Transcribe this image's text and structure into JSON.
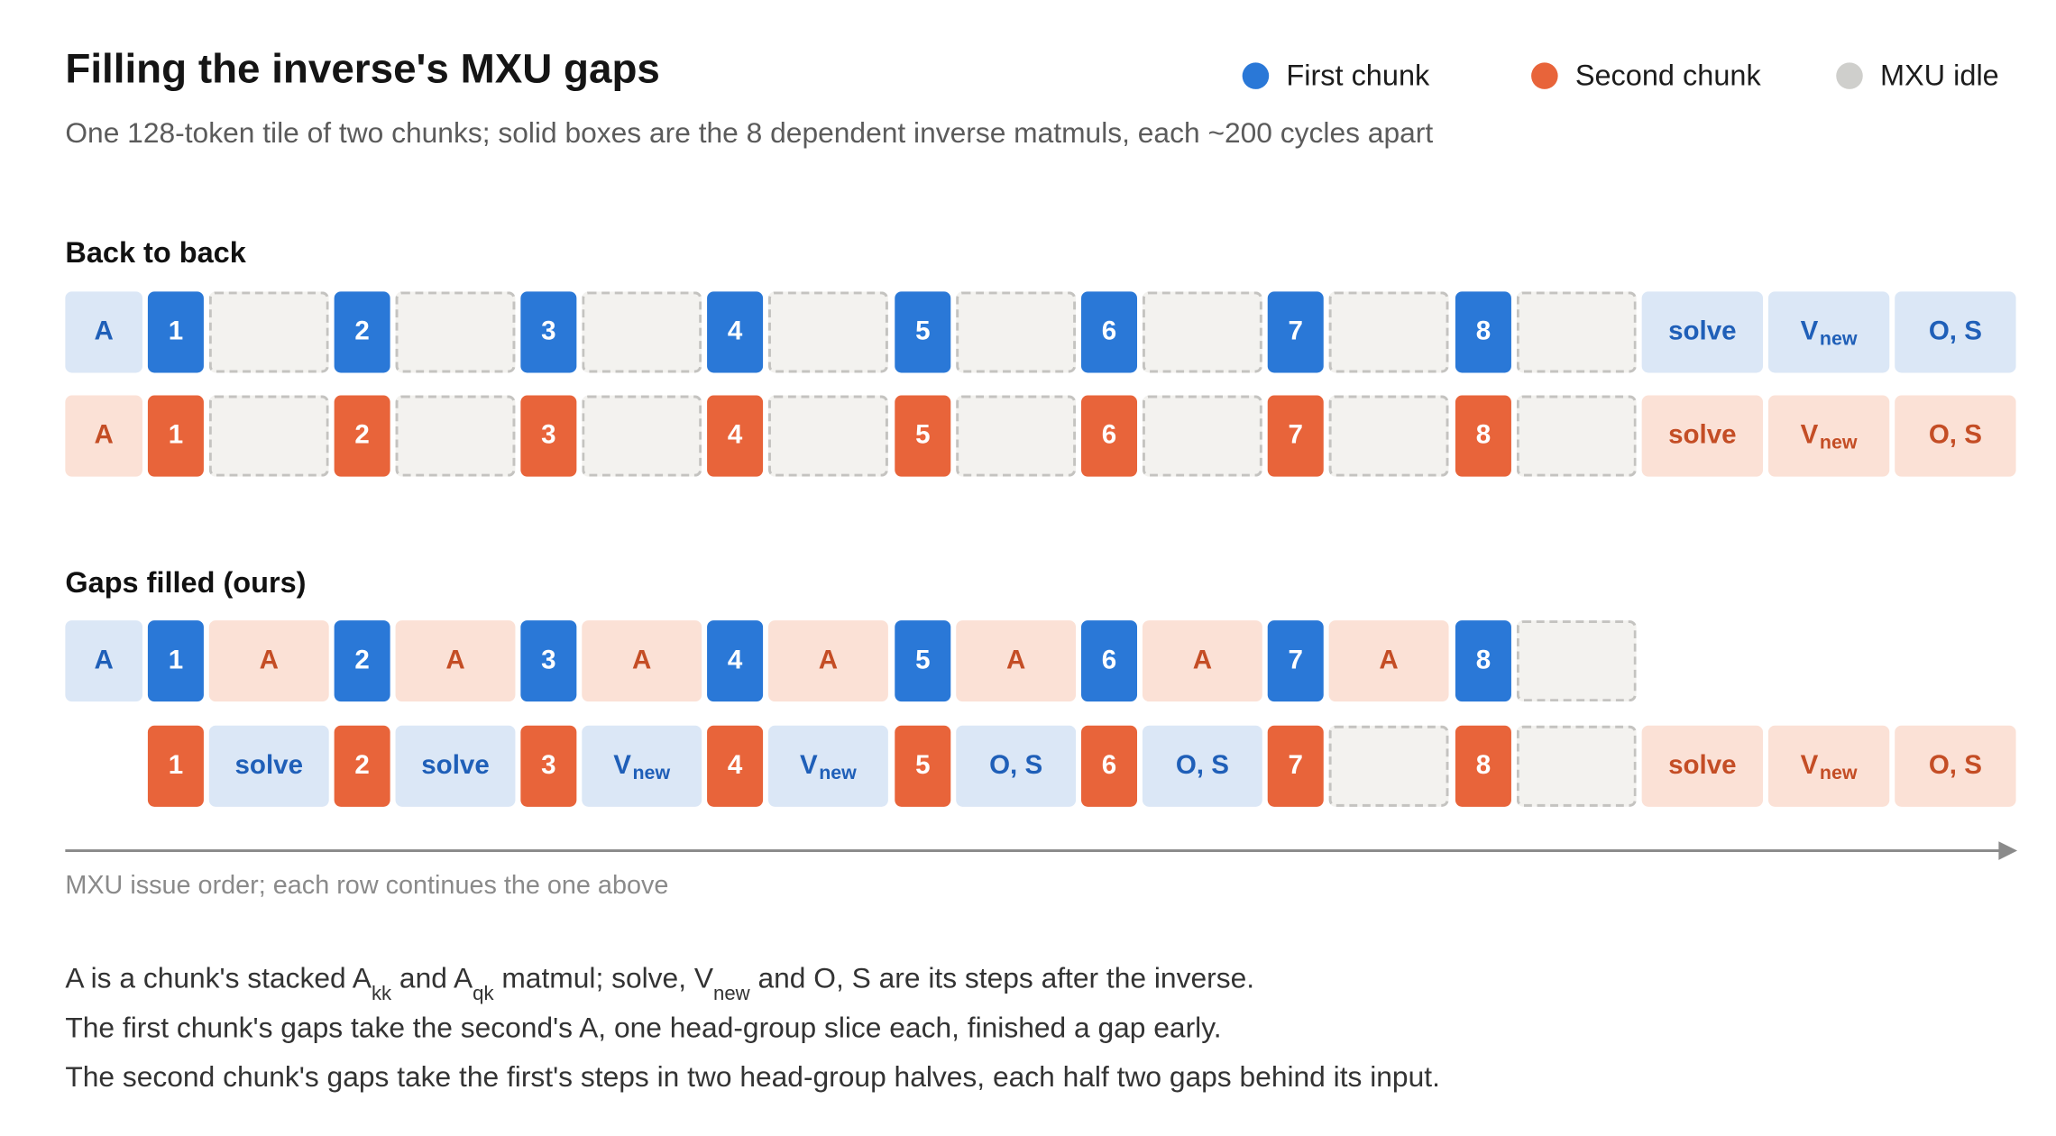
{
  "header": {
    "title": "Filling the inverse's MXU gaps",
    "subtitle": "One 128-token tile of two chunks; solid boxes are the 8 dependent inverse matmuls, each ~200 cycles apart"
  },
  "legend": [
    {
      "label": "First chunk",
      "color": "#2a78d7"
    },
    {
      "label": "Second chunk",
      "color": "#e8643a"
    },
    {
      "label": "MXU idle",
      "color": "#cfcfcc"
    }
  ],
  "sections": {
    "back_to_back": "Back to back",
    "gaps_filled": "Gaps filled (ours)"
  },
  "rows": [
    {
      "name": "back-to-back-first-chunk",
      "cells": [
        [
          "b-lt",
          "A"
        ],
        [
          "b-num",
          "1"
        ],
        [
          "idle",
          ""
        ],
        [
          "b-num",
          "2"
        ],
        [
          "idle",
          ""
        ],
        [
          "b-num",
          "3"
        ],
        [
          "idle",
          ""
        ],
        [
          "b-num",
          "4"
        ],
        [
          "idle",
          ""
        ],
        [
          "b-num",
          "5"
        ],
        [
          "idle",
          ""
        ],
        [
          "b-num",
          "6"
        ],
        [
          "idle",
          ""
        ],
        [
          "b-num",
          "7"
        ],
        [
          "idle",
          ""
        ],
        [
          "b-num",
          "8"
        ],
        [
          "idle",
          ""
        ],
        [
          "b-lt",
          "solve"
        ],
        [
          "b-lt",
          "V|new"
        ],
        [
          "b-lt",
          "O, S"
        ]
      ]
    },
    {
      "name": "back-to-back-second-chunk",
      "cells": [
        [
          "o-lt",
          "A"
        ],
        [
          "o-num",
          "1"
        ],
        [
          "idle",
          ""
        ],
        [
          "o-num",
          "2"
        ],
        [
          "idle",
          ""
        ],
        [
          "o-num",
          "3"
        ],
        [
          "idle",
          ""
        ],
        [
          "o-num",
          "4"
        ],
        [
          "idle",
          ""
        ],
        [
          "o-num",
          "5"
        ],
        [
          "idle",
          ""
        ],
        [
          "o-num",
          "6"
        ],
        [
          "idle",
          ""
        ],
        [
          "o-num",
          "7"
        ],
        [
          "idle",
          ""
        ],
        [
          "o-num",
          "8"
        ],
        [
          "idle",
          ""
        ],
        [
          "o-lt",
          "solve"
        ],
        [
          "o-lt",
          "V|new"
        ],
        [
          "o-lt",
          "O, S"
        ]
      ]
    },
    {
      "name": "gaps-filled-first-chunk",
      "cells": [
        [
          "b-lt",
          "A"
        ],
        [
          "b-num",
          "1"
        ],
        [
          "o-lt",
          "A"
        ],
        [
          "b-num",
          "2"
        ],
        [
          "o-lt",
          "A"
        ],
        [
          "b-num",
          "3"
        ],
        [
          "o-lt",
          "A"
        ],
        [
          "b-num",
          "4"
        ],
        [
          "o-lt",
          "A"
        ],
        [
          "b-num",
          "5"
        ],
        [
          "o-lt",
          "A"
        ],
        [
          "b-num",
          "6"
        ],
        [
          "o-lt",
          "A"
        ],
        [
          "b-num",
          "7"
        ],
        [
          "o-lt",
          "A"
        ],
        [
          "b-num",
          "8"
        ],
        [
          "idle",
          ""
        ]
      ]
    },
    {
      "name": "gaps-filled-second-chunk",
      "cells": [
        [
          "none",
          ""
        ],
        [
          "o-num",
          "1"
        ],
        [
          "b-lt",
          "solve"
        ],
        [
          "o-num",
          "2"
        ],
        [
          "b-lt",
          "solve"
        ],
        [
          "o-num",
          "3"
        ],
        [
          "b-lt",
          "V|new"
        ],
        [
          "o-num",
          "4"
        ],
        [
          "b-lt",
          "V|new"
        ],
        [
          "o-num",
          "5"
        ],
        [
          "b-lt",
          "O, S"
        ],
        [
          "o-num",
          "6"
        ],
        [
          "b-lt",
          "O, S"
        ],
        [
          "o-num",
          "7"
        ],
        [
          "idle",
          ""
        ],
        [
          "o-num",
          "8"
        ],
        [
          "idle",
          ""
        ],
        [
          "o-lt",
          "solve"
        ],
        [
          "o-lt",
          "V|new"
        ],
        [
          "o-lt",
          "O, S"
        ]
      ]
    }
  ],
  "caption": "MXU issue order; each row continues the one above",
  "notes": {
    "line1": {
      "a": "A is a chunk's stacked A",
      "kk": "kk",
      "b": " and A",
      "qk": "qk",
      "c": " matmul; solve, V",
      "new": "new",
      "d": " and O, S are its steps after the inverse."
    },
    "line2": "The first chunk's gaps take the second's A, one head-group slice each, finished a gap early.",
    "line3": "The second chunk's gaps take the first's steps in two head-group halves, each half two gaps behind its input."
  }
}
